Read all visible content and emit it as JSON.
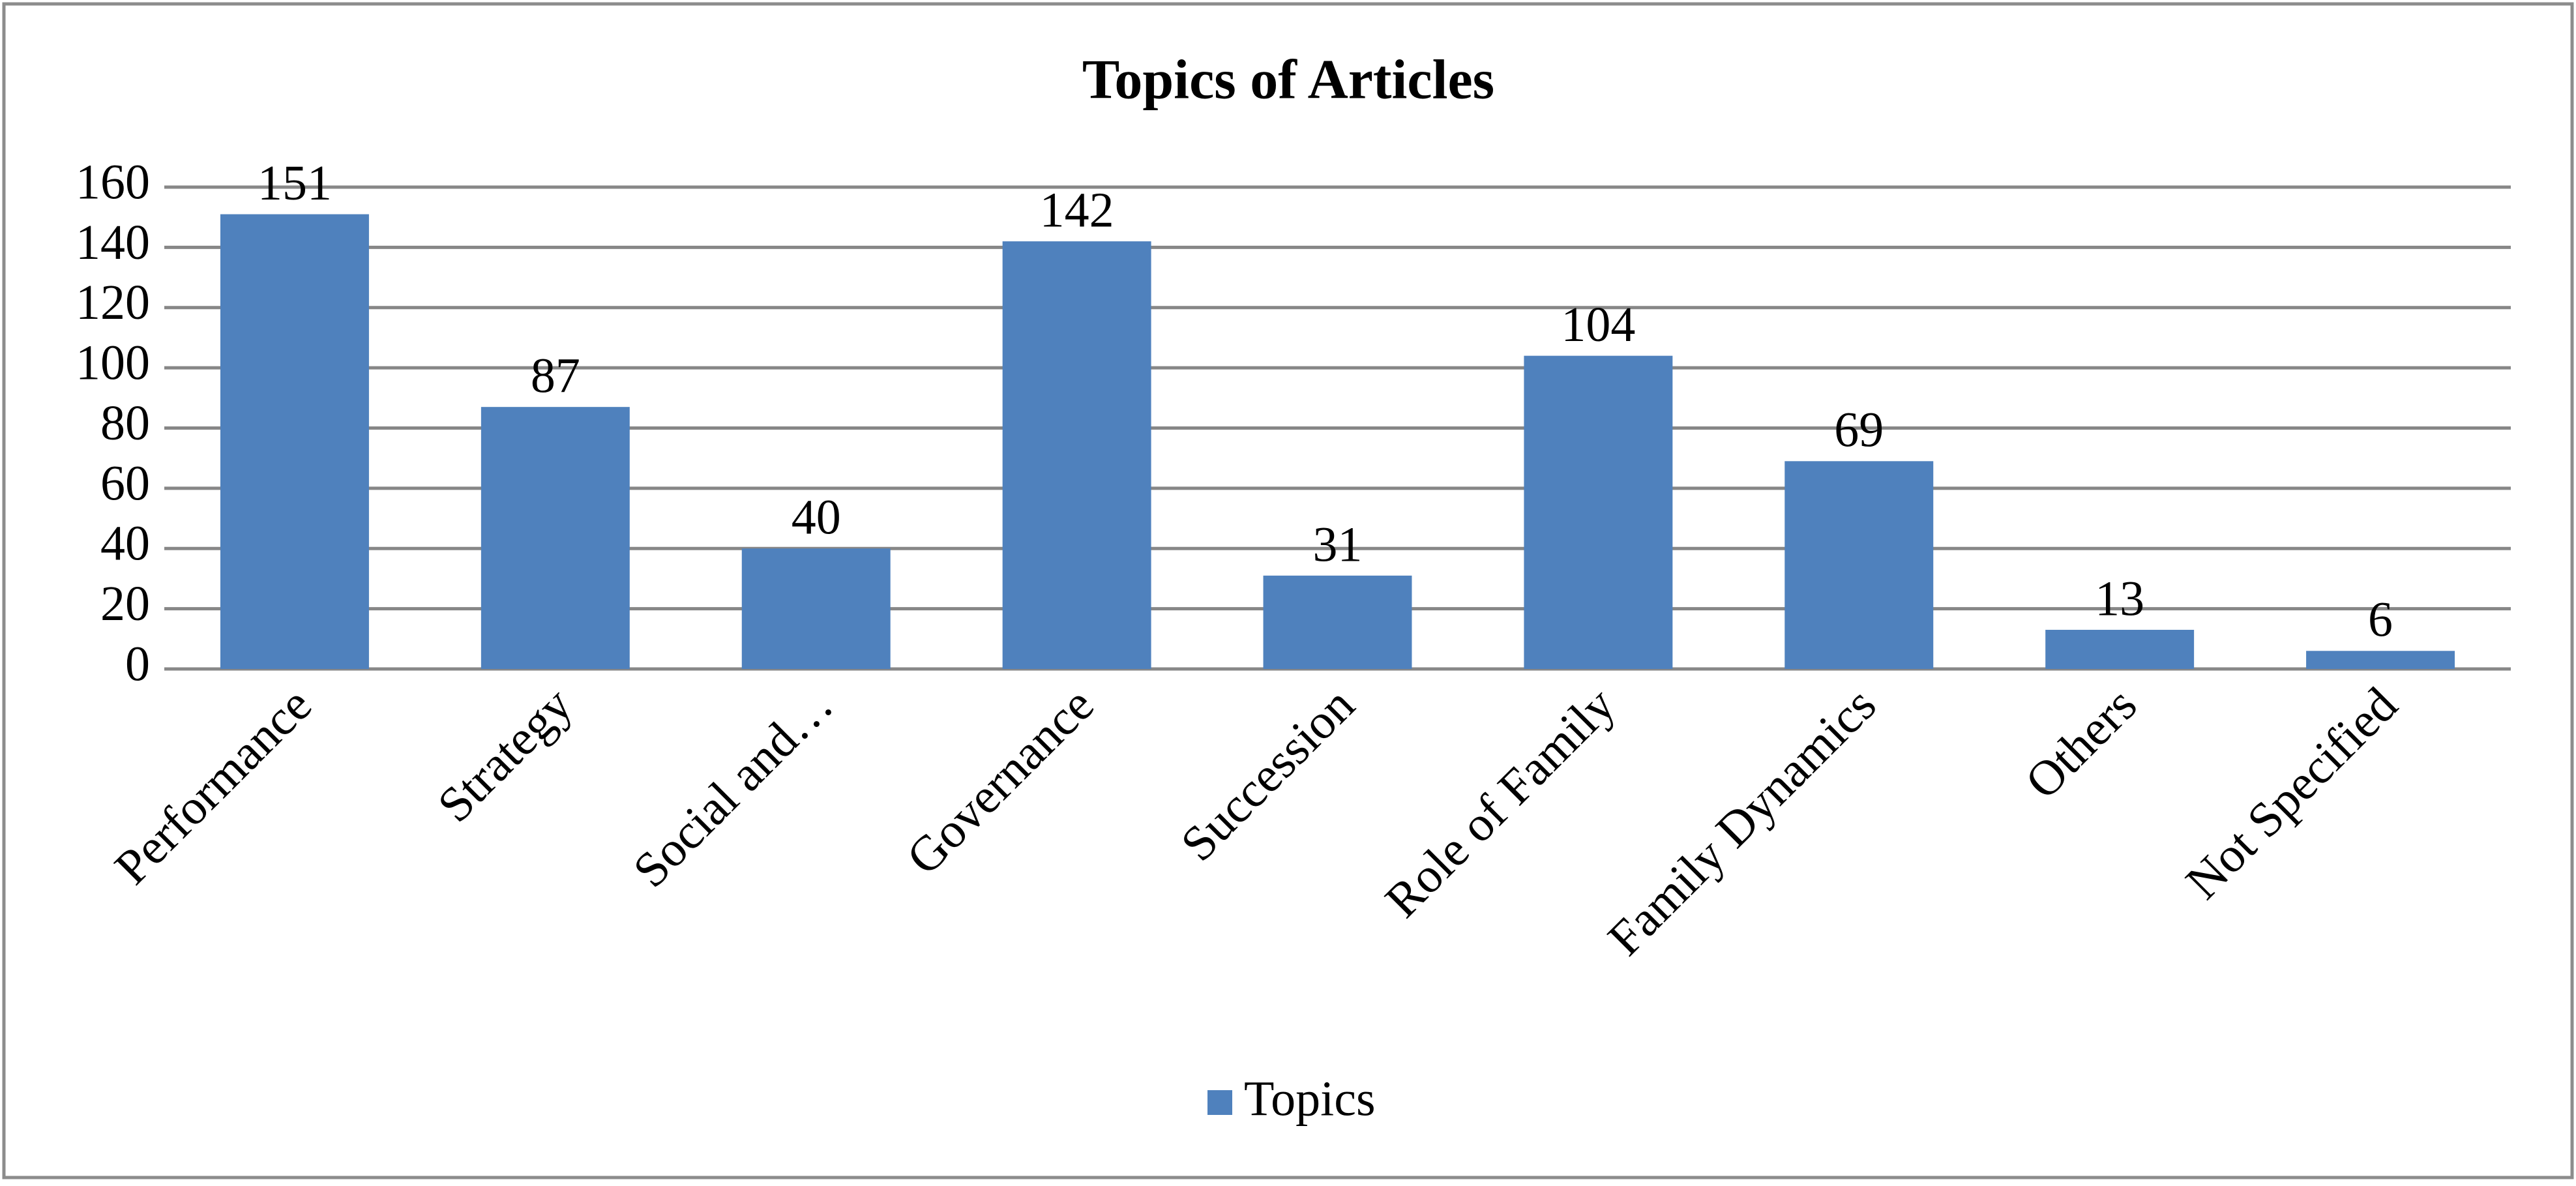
{
  "chart_data": {
    "type": "bar",
    "title": "Topics of Articles",
    "categories": [
      "Performance",
      "Strategy",
      "Social and…",
      "Governance",
      "Succession",
      "Role of Family",
      "Family Dynamics",
      "Others",
      "Not Specified"
    ],
    "series": [
      {
        "name": "Topics",
        "color": "#4f81bd",
        "values": [
          151,
          87,
          40,
          142,
          31,
          104,
          69,
          13,
          6
        ]
      }
    ],
    "ylim": [
      0,
      160
    ],
    "yticks": [
      0,
      20,
      40,
      60,
      80,
      100,
      120,
      140,
      160
    ],
    "grid": true,
    "legend": "bottom"
  }
}
